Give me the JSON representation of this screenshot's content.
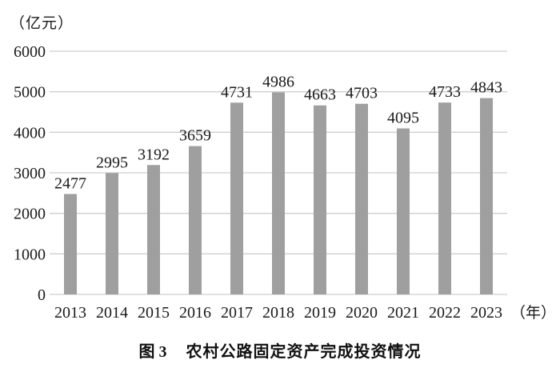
{
  "figure": {
    "caption_label": "图 3",
    "caption_title": "农村公路固定资产完成投资情况"
  },
  "chart_data": {
    "type": "bar",
    "title": "图 3 农村公路固定资产完成投资情况",
    "unit_label": "（亿元）",
    "x_suffix_label": "（年）",
    "xlabel": "",
    "ylabel": "（亿元）",
    "categories": [
      "2013",
      "2014",
      "2015",
      "2016",
      "2017",
      "2018",
      "2019",
      "2020",
      "2021",
      "2022",
      "2023"
    ],
    "values": [
      2477,
      2995,
      3192,
      3659,
      4731,
      4986,
      4663,
      4703,
      4095,
      4733,
      4843
    ],
    "ylim": [
      0,
      6000
    ],
    "yticks": [
      0,
      1000,
      2000,
      3000,
      4000,
      5000,
      6000
    ],
    "grid": "horizontal",
    "legend": "none",
    "bar_color": "#9f9f9f",
    "grid_color": "#cfcfcf",
    "axis_color": "#cfcfcf",
    "text_color": "#1a1a1a"
  }
}
